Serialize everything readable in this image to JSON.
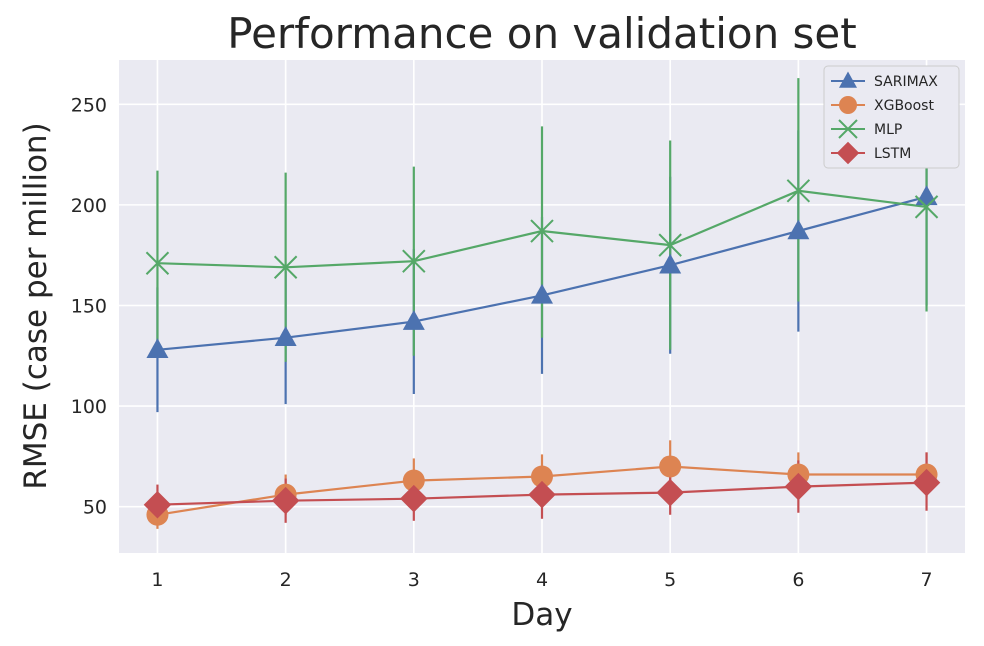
{
  "chart_data": {
    "type": "line",
    "title": "Performance on validation set",
    "xlabel": "Day",
    "ylabel": "RMSE (case per million)",
    "x": [
      1,
      2,
      3,
      4,
      5,
      6,
      7
    ],
    "xlim": [
      0.7,
      7.3
    ],
    "ylim": [
      27,
      272
    ],
    "yticks": [
      50,
      100,
      150,
      200,
      250
    ],
    "xticks": [
      1,
      2,
      3,
      4,
      5,
      6,
      7
    ],
    "grid": true,
    "legend_position": "top-right",
    "series": [
      {
        "name": "SARIMAX",
        "color": "#4c72b0",
        "marker": "triangle",
        "values": [
          128,
          134,
          142,
          155,
          170,
          187,
          204
        ],
        "err_low": [
          97,
          101,
          106,
          116,
          126,
          137,
          150
        ],
        "err_high": [
          159,
          167,
          178,
          194,
          214,
          237,
          258
        ]
      },
      {
        "name": "XGBoost",
        "color": "#dd8452",
        "marker": "circle",
        "values": [
          46,
          56,
          63,
          65,
          70,
          66,
          66
        ],
        "err_low": [
          39,
          46,
          52,
          54,
          57,
          55,
          55
        ],
        "err_high": [
          53,
          66,
          74,
          76,
          83,
          77,
          77
        ]
      },
      {
        "name": "MLP",
        "color": "#55a868",
        "marker": "x",
        "values": [
          171,
          169,
          172,
          187,
          180,
          207,
          199
        ],
        "err_low": [
          125,
          122,
          125,
          134,
          128,
          152,
          147
        ],
        "err_high": [
          217,
          216,
          219,
          239,
          232,
          263,
          252
        ]
      },
      {
        "name": "LSTM",
        "color": "#c44e52",
        "marker": "diamond",
        "values": [
          51,
          53,
          54,
          56,
          57,
          60,
          62
        ],
        "err_low": [
          42,
          42,
          43,
          44,
          46,
          47,
          48
        ],
        "err_high": [
          61,
          64,
          66,
          68,
          69,
          73,
          77
        ]
      }
    ]
  }
}
